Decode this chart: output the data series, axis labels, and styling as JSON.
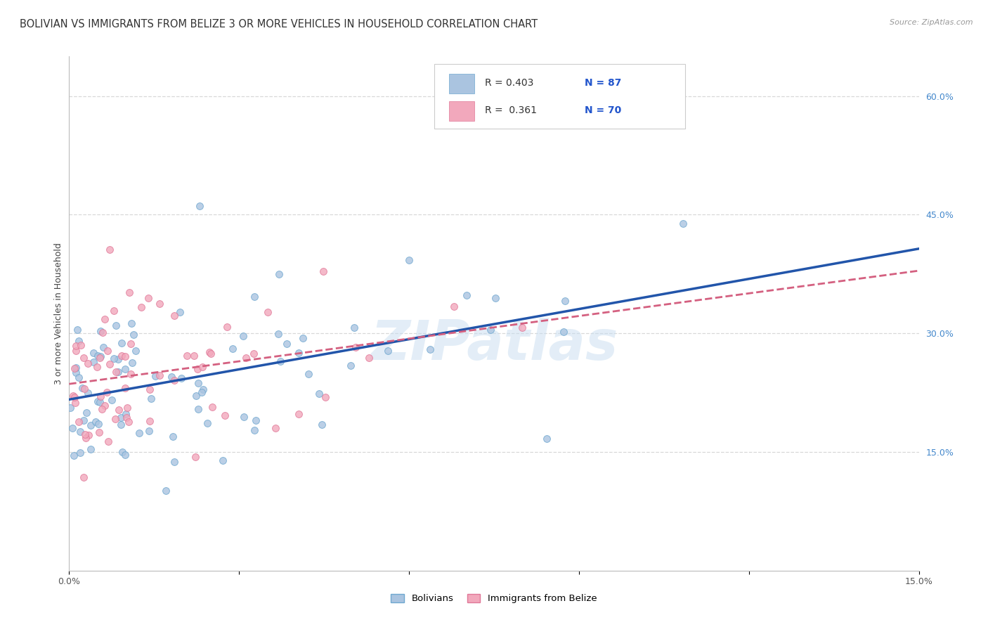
{
  "title": "BOLIVIAN VS IMMIGRANTS FROM BELIZE 3 OR MORE VEHICLES IN HOUSEHOLD CORRELATION CHART",
  "source": "Source: ZipAtlas.com",
  "ylabel": "3 or more Vehicles in Household",
  "x_min": 0.0,
  "x_max": 0.15,
  "y_min": 0.0,
  "y_max": 0.65,
  "x_tick_positions": [
    0.0,
    0.03,
    0.06,
    0.09,
    0.12,
    0.15
  ],
  "x_tick_labels": [
    "0.0%",
    "",
    "",
    "",
    "",
    "15.0%"
  ],
  "y_ticks_right": [
    0.15,
    0.3,
    0.45,
    0.6
  ],
  "y_tick_labels_right": [
    "15.0%",
    "30.0%",
    "45.0%",
    "60.0%"
  ],
  "bolivian_color": "#aac4e0",
  "belize_color": "#f2a8bc",
  "bolivian_edge": "#6fa8d0",
  "belize_edge": "#e07898",
  "trend_bolivian_color": "#2255aa",
  "trend_belize_color": "#d46080",
  "watermark_color": "#c8ddf0",
  "grid_color": "#d8d8d8",
  "title_fontsize": 10.5,
  "label_fontsize": 9,
  "tick_fontsize": 9,
  "scatter_size": 50,
  "background_color": "#ffffff",
  "legend_R_bolivian": "R = 0.403",
  "legend_N_bolivian": "N = 87",
  "legend_R_belize": "R =  0.361",
  "legend_N_belize": "N = 70",
  "seed_bolivian": 42,
  "seed_belize": 77,
  "n_bolivian": 87,
  "n_belize": 70
}
